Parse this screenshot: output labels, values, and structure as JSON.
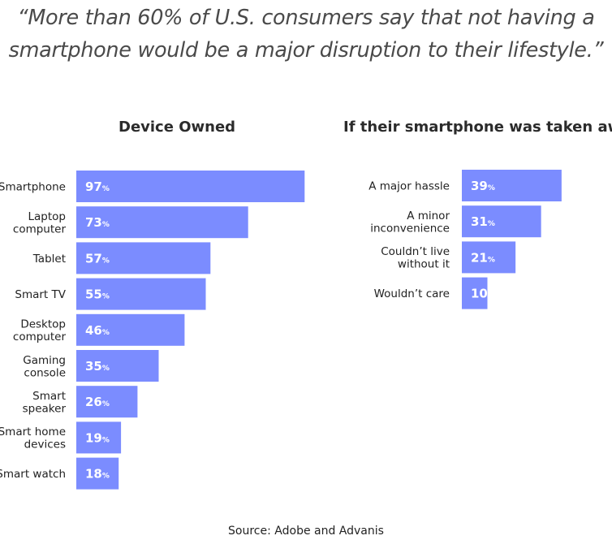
{
  "quote": {
    "line1": "“More than 60% of U.S. consumers say that not having a",
    "line2": "smartphone would be a major disruption to their lifestyle.”"
  },
  "source": "Source: Adobe and Advanis",
  "colors": {
    "bar": "#7b8cff",
    "bar_text": "#ffffff"
  },
  "chart_data": [
    {
      "type": "bar",
      "orientation": "horizontal",
      "title": "Device Owned",
      "categories": [
        [
          "Smartphone"
        ],
        [
          "Laptop",
          "computer"
        ],
        [
          "Tablet"
        ],
        [
          "Smart TV"
        ],
        [
          "Desktop",
          "computer"
        ],
        [
          "Gaming",
          "console"
        ],
        [
          "Smart",
          "speaker"
        ],
        [
          "Smart home",
          "devices"
        ],
        [
          "Smart watch"
        ]
      ],
      "values": [
        97,
        73,
        57,
        55,
        46,
        35,
        26,
        19,
        18
      ],
      "unit": "%",
      "xlim": [
        0,
        100
      ]
    },
    {
      "type": "bar",
      "orientation": "horizontal",
      "title": "If their smartphone was taken away",
      "categories": [
        [
          "A major hassle"
        ],
        [
          "A minor",
          "inconvenience"
        ],
        [
          "Couldn’t live",
          "without it"
        ],
        [
          "Wouldn’t care"
        ]
      ],
      "values": [
        39,
        31,
        21,
        10
      ],
      "unit": "%",
      "xlim": [
        0,
        100
      ]
    }
  ]
}
